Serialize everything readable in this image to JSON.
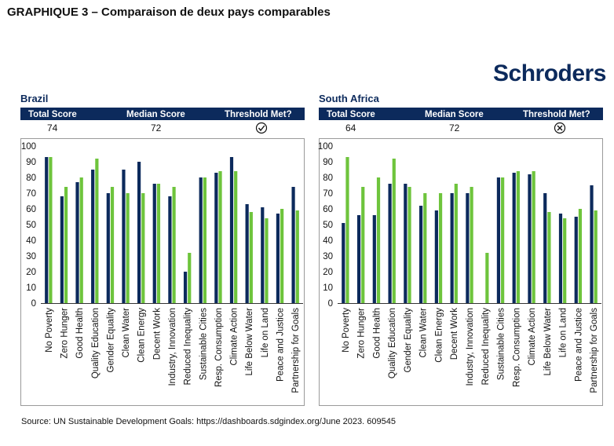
{
  "page": {
    "title": "GRAPHIQUE 3 – Comparaison de deux pays comparables",
    "logo_text": "Schroders",
    "source": "Source: UN Sustainable Development Goals: https://dashboards.sdgindex.org/June 2023. 609545"
  },
  "colors": {
    "series_country": "#0c2a5c",
    "series_median": "#6ec43c",
    "header_bg": "#0c2a5c",
    "logo": "#0c2a5c"
  },
  "chart_data": [
    {
      "type": "bar",
      "title": "Brazil",
      "summary": {
        "headers": [
          "Total Score",
          "Median Score",
          "Threshold Met?"
        ],
        "total_score": "74",
        "median_score": "72",
        "threshold_met": true,
        "threshold_icon": "check-circle-icon"
      },
      "categories": [
        "No Poverty",
        "Zero Hunger",
        "Good Health",
        "Quality Education",
        "Gender Equality",
        "Clean Water",
        "Clean Energy",
        "Decent Work",
        "Industry, Innovation",
        "Reduced Inequality",
        "Sustainable Cities",
        "Resp. Consumption",
        "Climate Action",
        "Life Below Water",
        "Life on Land",
        "Peace and Justice",
        "Partnership for Goals"
      ],
      "series": [
        {
          "values": [
            93,
            68,
            77,
            85,
            70,
            85,
            90,
            76,
            68,
            20,
            80,
            83,
            93,
            63,
            61,
            57,
            74
          ]
        },
        {
          "values": [
            93,
            74,
            80,
            92,
            74,
            70,
            70,
            76,
            74,
            32,
            80,
            84,
            84,
            58,
            54,
            60,
            59
          ]
        }
      ],
      "yticks": [
        "0",
        "10",
        "20",
        "30",
        "40",
        "50",
        "60",
        "70",
        "80",
        "90",
        "100"
      ],
      "ylim": [
        0,
        100
      ],
      "grid": false
    },
    {
      "type": "bar",
      "title": "South Africa",
      "summary": {
        "headers": [
          "Total Score",
          "Median Score",
          "Threshold Met?"
        ],
        "total_score": "64",
        "median_score": "72",
        "threshold_met": false,
        "threshold_icon": "x-circle-icon"
      },
      "categories": [
        "No Poverty",
        "Zero Hunger",
        "Good Health",
        "Quality Education",
        "Gender Equality",
        "Clean Water",
        "Clean Energy",
        "Decent Work",
        "Industry, Innovation",
        "Reduced Inequality",
        "Sustainable Cities",
        "Resp. Consumption",
        "Climate Action",
        "Life Below Water",
        "Life on Land",
        "Peace and Justice",
        "Partnership for Goals"
      ],
      "series": [
        {
          "values": [
            51,
            56,
            56,
            76,
            76,
            62,
            59,
            70,
            70,
            0,
            80,
            83,
            82,
            70,
            57,
            55,
            75
          ]
        },
        {
          "values": [
            93,
            74,
            80,
            92,
            74,
            70,
            70,
            76,
            74,
            32,
            80,
            84,
            84,
            58,
            54,
            60,
            59
          ]
        }
      ],
      "yticks": [
        "0",
        "10",
        "20",
        "30",
        "40",
        "50",
        "60",
        "70",
        "80",
        "90",
        "100"
      ],
      "ylim": [
        0,
        100
      ],
      "grid": false
    }
  ]
}
